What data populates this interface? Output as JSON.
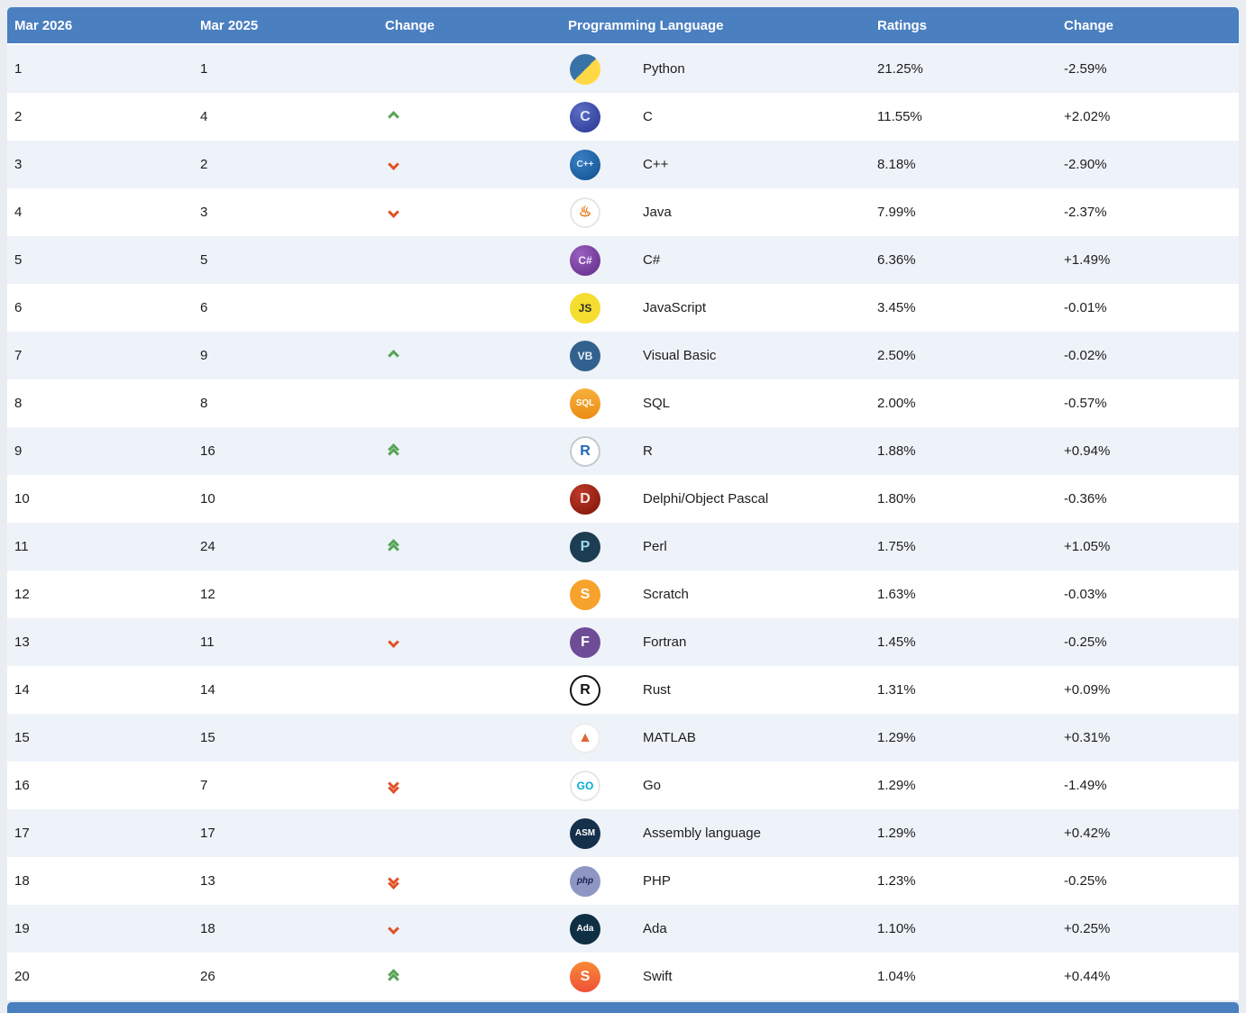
{
  "page": {
    "background": "#e9edf2"
  },
  "colors": {
    "header_bg": "#4a7fc0",
    "row_alt_bg": "#eef2f9",
    "rank_up": "#56a456",
    "rank_down": "#df5227"
  },
  "table": {
    "columns": [
      {
        "key": "rank-2026",
        "label": "Mar 2026"
      },
      {
        "key": "rank-2025",
        "label": "Mar 2025"
      },
      {
        "key": "rank-change",
        "label": "Change"
      },
      {
        "key": "language",
        "label": "Programming Language"
      },
      {
        "key": "ratings",
        "label": "Ratings"
      },
      {
        "key": "ratings-change",
        "label": "Change"
      }
    ],
    "rows": [
      {
        "rank_2026": "1",
        "rank_2025": "1",
        "movement": "none",
        "language": "Python",
        "rating": "21.25%",
        "rating_change": "-2.59%",
        "icon": {
          "name": "python-icon",
          "text": "",
          "bg": "linear-gradient(135deg,#3873a7 50%,#ffd845 50%)",
          "fg": "#ffffff"
        }
      },
      {
        "rank_2026": "2",
        "rank_2025": "4",
        "movement": "up",
        "language": "C",
        "rating": "11.55%",
        "rating_change": "+2.02%",
        "icon": {
          "name": "c-icon",
          "text": "C",
          "bg": "radial-gradient(circle at 35% 30%,#5a6ec2,#283593)",
          "fg": "#dfe6ff"
        }
      },
      {
        "rank_2026": "3",
        "rank_2025": "2",
        "movement": "down",
        "language": "C++",
        "rating": "8.18%",
        "rating_change": "-2.90%",
        "icon": {
          "name": "cpp-icon",
          "text": "C++",
          "bg": "radial-gradient(circle at 35% 30%,#3b7fc4,#0d4f8b)",
          "fg": "#dff0ff"
        }
      },
      {
        "rank_2026": "4",
        "rank_2025": "3",
        "movement": "down",
        "language": "Java",
        "rating": "7.99%",
        "rating_change": "-2.37%",
        "icon": {
          "name": "java-icon",
          "text": "♨",
          "bg": "#ffffff",
          "fg": "#e76f00",
          "ring": "#e6e6e6"
        }
      },
      {
        "rank_2026": "5",
        "rank_2025": "5",
        "movement": "none",
        "language": "C#",
        "rating": "6.36%",
        "rating_change": "+1.49%",
        "icon": {
          "name": "csharp-icon",
          "text": "C#",
          "bg": "radial-gradient(circle at 35% 30%,#9a5fc0,#5f2a86)",
          "fg": "#f3e8ff"
        }
      },
      {
        "rank_2026": "6",
        "rank_2025": "6",
        "movement": "none",
        "language": "JavaScript",
        "rating": "3.45%",
        "rating_change": "-0.01%",
        "icon": {
          "name": "javascript-icon",
          "text": "JS",
          "bg": "#f5de2f",
          "fg": "#2b2b2b"
        }
      },
      {
        "rank_2026": "7",
        "rank_2025": "9",
        "movement": "up",
        "language": "Visual Basic",
        "rating": "2.50%",
        "rating_change": "-0.02%",
        "icon": {
          "name": "visual-basic-icon",
          "text": "VB",
          "bg": "#33618f",
          "fg": "#e8f0f8"
        }
      },
      {
        "rank_2026": "8",
        "rank_2025": "8",
        "movement": "none",
        "language": "SQL",
        "rating": "2.00%",
        "rating_change": "-0.57%",
        "icon": {
          "name": "sql-icon",
          "text": "SQL",
          "bg": "linear-gradient(180deg,#f6b03d,#ec8c12)",
          "fg": "#ffffff"
        }
      },
      {
        "rank_2026": "9",
        "rank_2025": "16",
        "movement": "up2",
        "language": "R",
        "rating": "1.88%",
        "rating_change": "+0.94%",
        "icon": {
          "name": "r-icon",
          "text": "R",
          "bg": "#ffffff",
          "fg": "#2065ba",
          "ring": "#c3c9cf"
        }
      },
      {
        "rank_2026": "10",
        "rank_2025": "10",
        "movement": "none",
        "language": "Delphi/Object Pascal",
        "rating": "1.80%",
        "rating_change": "-0.36%",
        "icon": {
          "name": "delphi-icon",
          "text": "D",
          "bg": "radial-gradient(circle at 35% 30%,#c0392b,#7a1405)",
          "fg": "#f8e8e4"
        }
      },
      {
        "rank_2026": "11",
        "rank_2025": "24",
        "movement": "up2",
        "language": "Perl",
        "rating": "1.75%",
        "rating_change": "+1.05%",
        "icon": {
          "name": "perl-icon",
          "text": "P",
          "bg": "#1c3d52",
          "fg": "#9fd8f0"
        }
      },
      {
        "rank_2026": "12",
        "rank_2025": "12",
        "movement": "none",
        "language": "Scratch",
        "rating": "1.63%",
        "rating_change": "-0.03%",
        "icon": {
          "name": "scratch-icon",
          "text": "S",
          "bg": "#f7a22b",
          "fg": "#ffffff"
        }
      },
      {
        "rank_2026": "13",
        "rank_2025": "11",
        "movement": "down",
        "language": "Fortran",
        "rating": "1.45%",
        "rating_change": "-0.25%",
        "icon": {
          "name": "fortran-icon",
          "text": "F",
          "bg": "#6e4d96",
          "fg": "#ffffff"
        }
      },
      {
        "rank_2026": "14",
        "rank_2025": "14",
        "movement": "none",
        "language": "Rust",
        "rating": "1.31%",
        "rating_change": "+0.09%",
        "icon": {
          "name": "rust-icon",
          "text": "R",
          "bg": "#ffffff",
          "fg": "#141414",
          "ring": "#141414"
        }
      },
      {
        "rank_2026": "15",
        "rank_2025": "15",
        "movement": "none",
        "language": "MATLAB",
        "rating": "1.29%",
        "rating_change": "+0.31%",
        "icon": {
          "name": "matlab-icon",
          "text": "▲",
          "bg": "#ffffff",
          "fg": "#e16737",
          "ring": "#ececec"
        }
      },
      {
        "rank_2026": "16",
        "rank_2025": "7",
        "movement": "down2",
        "language": "Go",
        "rating": "1.29%",
        "rating_change": "-1.49%",
        "icon": {
          "name": "go-icon",
          "text": "GO",
          "bg": "#ffffff",
          "fg": "#00acd7",
          "ring": "#e6e6e6"
        }
      },
      {
        "rank_2026": "17",
        "rank_2025": "17",
        "movement": "none",
        "language": "Assembly language",
        "rating": "1.29%",
        "rating_change": "+0.42%",
        "icon": {
          "name": "assembly-icon",
          "text": "ASM",
          "bg": "#15304b",
          "fg": "#ffffff"
        }
      },
      {
        "rank_2026": "18",
        "rank_2025": "13",
        "movement": "down2",
        "language": "PHP",
        "rating": "1.23%",
        "rating_change": "-0.25%",
        "icon": {
          "name": "php-icon",
          "text": "php",
          "bg": "#8e97c4",
          "fg": "#1d2450",
          "italic": true
        }
      },
      {
        "rank_2026": "19",
        "rank_2025": "18",
        "movement": "down",
        "language": "Ada",
        "rating": "1.10%",
        "rating_change": "+0.25%",
        "icon": {
          "name": "ada-icon",
          "text": "Ada",
          "bg": "#0e2f44",
          "fg": "#ffffff"
        }
      },
      {
        "rank_2026": "20",
        "rank_2025": "26",
        "movement": "up2",
        "language": "Swift",
        "rating": "1.04%",
        "rating_change": "+0.44%",
        "icon": {
          "name": "swift-icon",
          "text": "S",
          "bg": "linear-gradient(180deg,#f88a36,#f05138)",
          "fg": "#ffffff"
        }
      }
    ]
  }
}
